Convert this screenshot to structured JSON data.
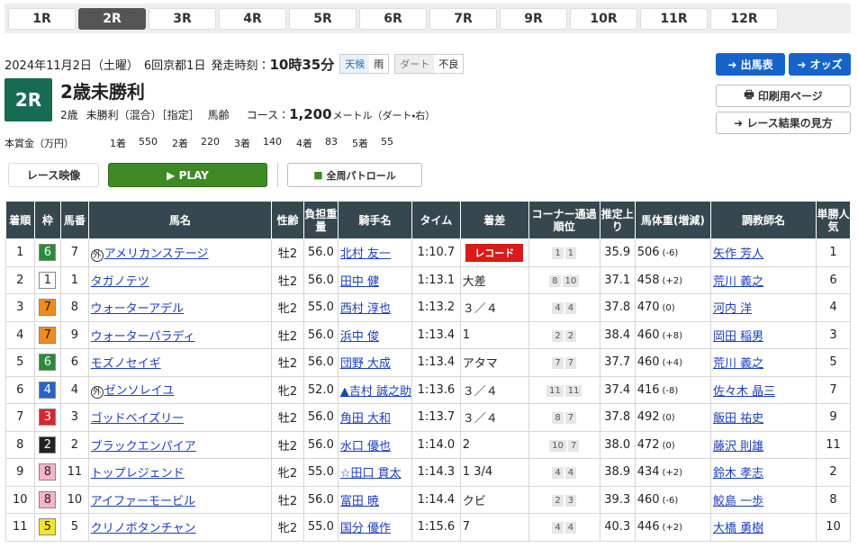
{
  "race_tabs": [
    "1R",
    "2R",
    "3R",
    "4R",
    "5R",
    "6R",
    "7R",
    "9R",
    "10R",
    "11R",
    "12R"
  ],
  "active_tab": 1,
  "header": {
    "date": "2024年11月2日（土曜）",
    "meeting": "6回京都1日",
    "start_label": "発走時刻：",
    "start_time": "10時35分",
    "weather_label": "天候",
    "weather": "雨",
    "track_label": "ダート",
    "track_condition": "不良",
    "race_number": "2R",
    "race_name": "2歳未勝利",
    "age": "2歳",
    "race_class": "未勝利（混合）［指定］",
    "weight_rule": "馬齢",
    "course_label": "コース：",
    "distance": "1,200",
    "course_detail": "メートル（ダート・右）"
  },
  "buttons": {
    "entries": "出馬表",
    "odds": "オッズ",
    "print": "印刷用ページ",
    "guide": "レース結果の見方"
  },
  "prize": {
    "label": "本賞金（万円）",
    "items": [
      [
        "1着",
        "550"
      ],
      [
        "2着",
        "220"
      ],
      [
        "3着",
        "140"
      ],
      [
        "4着",
        "83"
      ],
      [
        "5着",
        "55"
      ]
    ]
  },
  "video": {
    "label": "レース映像",
    "play": "PLAY",
    "patrol": "全周パトロール"
  },
  "table": {
    "columns": [
      "着順",
      "枠",
      "馬番",
      "馬名",
      "性齢",
      "負担重量",
      "騎手名",
      "タイム",
      "着差",
      "コーナー通過順位",
      "推定上り",
      "馬体重(増減)",
      "調教師名",
      "単勝人気"
    ],
    "rows": [
      {
        "rank": "1",
        "waku": "6",
        "num": "7",
        "mark": "外",
        "horse": "アメリカンステージ",
        "sex_age": "牡2",
        "weight": "56.0",
        "jockey": "北村 友一",
        "time": "1:10.7",
        "margin": "レコード",
        "margin_badge": true,
        "corners": [
          "1",
          "1"
        ],
        "last3f": "35.9",
        "body": "506",
        "diff": "(-6)",
        "trainer": "矢作 芳人",
        "pop": "1"
      },
      {
        "rank": "2",
        "waku": "1",
        "num": "1",
        "horse": "タガノテツ",
        "sex_age": "牡2",
        "weight": "56.0",
        "jockey": "田中 健",
        "time": "1:13.1",
        "margin": "大差",
        "corners": [
          "8",
          "10"
        ],
        "last3f": "37.1",
        "body": "458",
        "diff": "(+2)",
        "trainer": "荒川 義之",
        "pop": "6"
      },
      {
        "rank": "3",
        "waku": "7",
        "num": "8",
        "horse": "ウォーターアデル",
        "sex_age": "牝2",
        "weight": "55.0",
        "jockey": "西村 淳也",
        "time": "1:13.2",
        "margin": "３／４",
        "corners": [
          "4",
          "4"
        ],
        "last3f": "37.8",
        "body": "470",
        "diff": "(0)",
        "trainer": "河内 洋",
        "pop": "4"
      },
      {
        "rank": "4",
        "waku": "7",
        "num": "9",
        "horse": "ウォーターパラディ",
        "sex_age": "牡2",
        "weight": "56.0",
        "jockey": "浜中 俊",
        "time": "1:13.4",
        "margin": "1",
        "corners": [
          "2",
          "2"
        ],
        "last3f": "38.4",
        "body": "460",
        "diff": "(+8)",
        "trainer": "岡田 稲男",
        "pop": "3"
      },
      {
        "rank": "5",
        "waku": "6",
        "num": "6",
        "horse": "モズノセイギ",
        "sex_age": "牡2",
        "weight": "56.0",
        "jockey": "団野 大成",
        "time": "1:13.4",
        "margin": "アタマ",
        "corners": [
          "7",
          "7"
        ],
        "last3f": "37.7",
        "body": "460",
        "diff": "(+4)",
        "trainer": "荒川 義之",
        "pop": "5"
      },
      {
        "rank": "6",
        "waku": "4",
        "num": "4",
        "mark": "外",
        "horse": "ゼンソレイユ",
        "sex_age": "牝2",
        "weight": "52.0",
        "jockey": "▲吉村 誠之助",
        "time": "1:13.6",
        "margin": "３／４",
        "corners": [
          "11",
          "11"
        ],
        "last3f": "37.4",
        "body": "416",
        "diff": "(-8)",
        "trainer": "佐々木 晶三",
        "pop": "7"
      },
      {
        "rank": "7",
        "waku": "3",
        "num": "3",
        "horse": "ゴッドベイズリー",
        "sex_age": "牡2",
        "weight": "56.0",
        "jockey": "角田 大和",
        "time": "1:13.7",
        "margin": "３／４",
        "corners": [
          "8",
          "7"
        ],
        "last3f": "37.8",
        "body": "492",
        "diff": "(0)",
        "trainer": "飯田 祐史",
        "pop": "9"
      },
      {
        "rank": "8",
        "waku": "2",
        "num": "2",
        "horse": "ブラックエンパイア",
        "sex_age": "牡2",
        "weight": "56.0",
        "jockey": "水口 優也",
        "time": "1:14.0",
        "margin": "2",
        "corners": [
          "10",
          "7"
        ],
        "last3f": "38.0",
        "body": "472",
        "diff": "(0)",
        "trainer": "藤沢 則雄",
        "pop": "11"
      },
      {
        "rank": "9",
        "waku": "8",
        "num": "11",
        "horse": "トップレジェンド",
        "sex_age": "牝2",
        "weight": "55.0",
        "jockey": "☆田口 貫太",
        "time": "1:14.3",
        "margin": "1 3/4",
        "corners": [
          "4",
          "4"
        ],
        "last3f": "38.9",
        "body": "434",
        "diff": "(+2)",
        "trainer": "鈴木 孝志",
        "pop": "2"
      },
      {
        "rank": "10",
        "waku": "8",
        "num": "10",
        "horse": "アイファーモービル",
        "sex_age": "牡2",
        "weight": "56.0",
        "jockey": "富田 暁",
        "time": "1:14.4",
        "margin": "クビ",
        "corners": [
          "2",
          "3"
        ],
        "last3f": "39.3",
        "body": "460",
        "diff": "(-6)",
        "trainer": "鮫島 一歩",
        "pop": "8"
      },
      {
        "rank": "11",
        "waku": "5",
        "num": "5",
        "horse": "クリノボタンチャン",
        "sex_age": "牝2",
        "weight": "55.0",
        "jockey": "国分 優作",
        "time": "1:15.6",
        "margin": "7",
        "corners": [
          "4",
          "4"
        ],
        "last3f": "40.3",
        "body": "446",
        "diff": "(+2)",
        "trainer": "大橋 勇樹",
        "pop": "10"
      }
    ]
  }
}
